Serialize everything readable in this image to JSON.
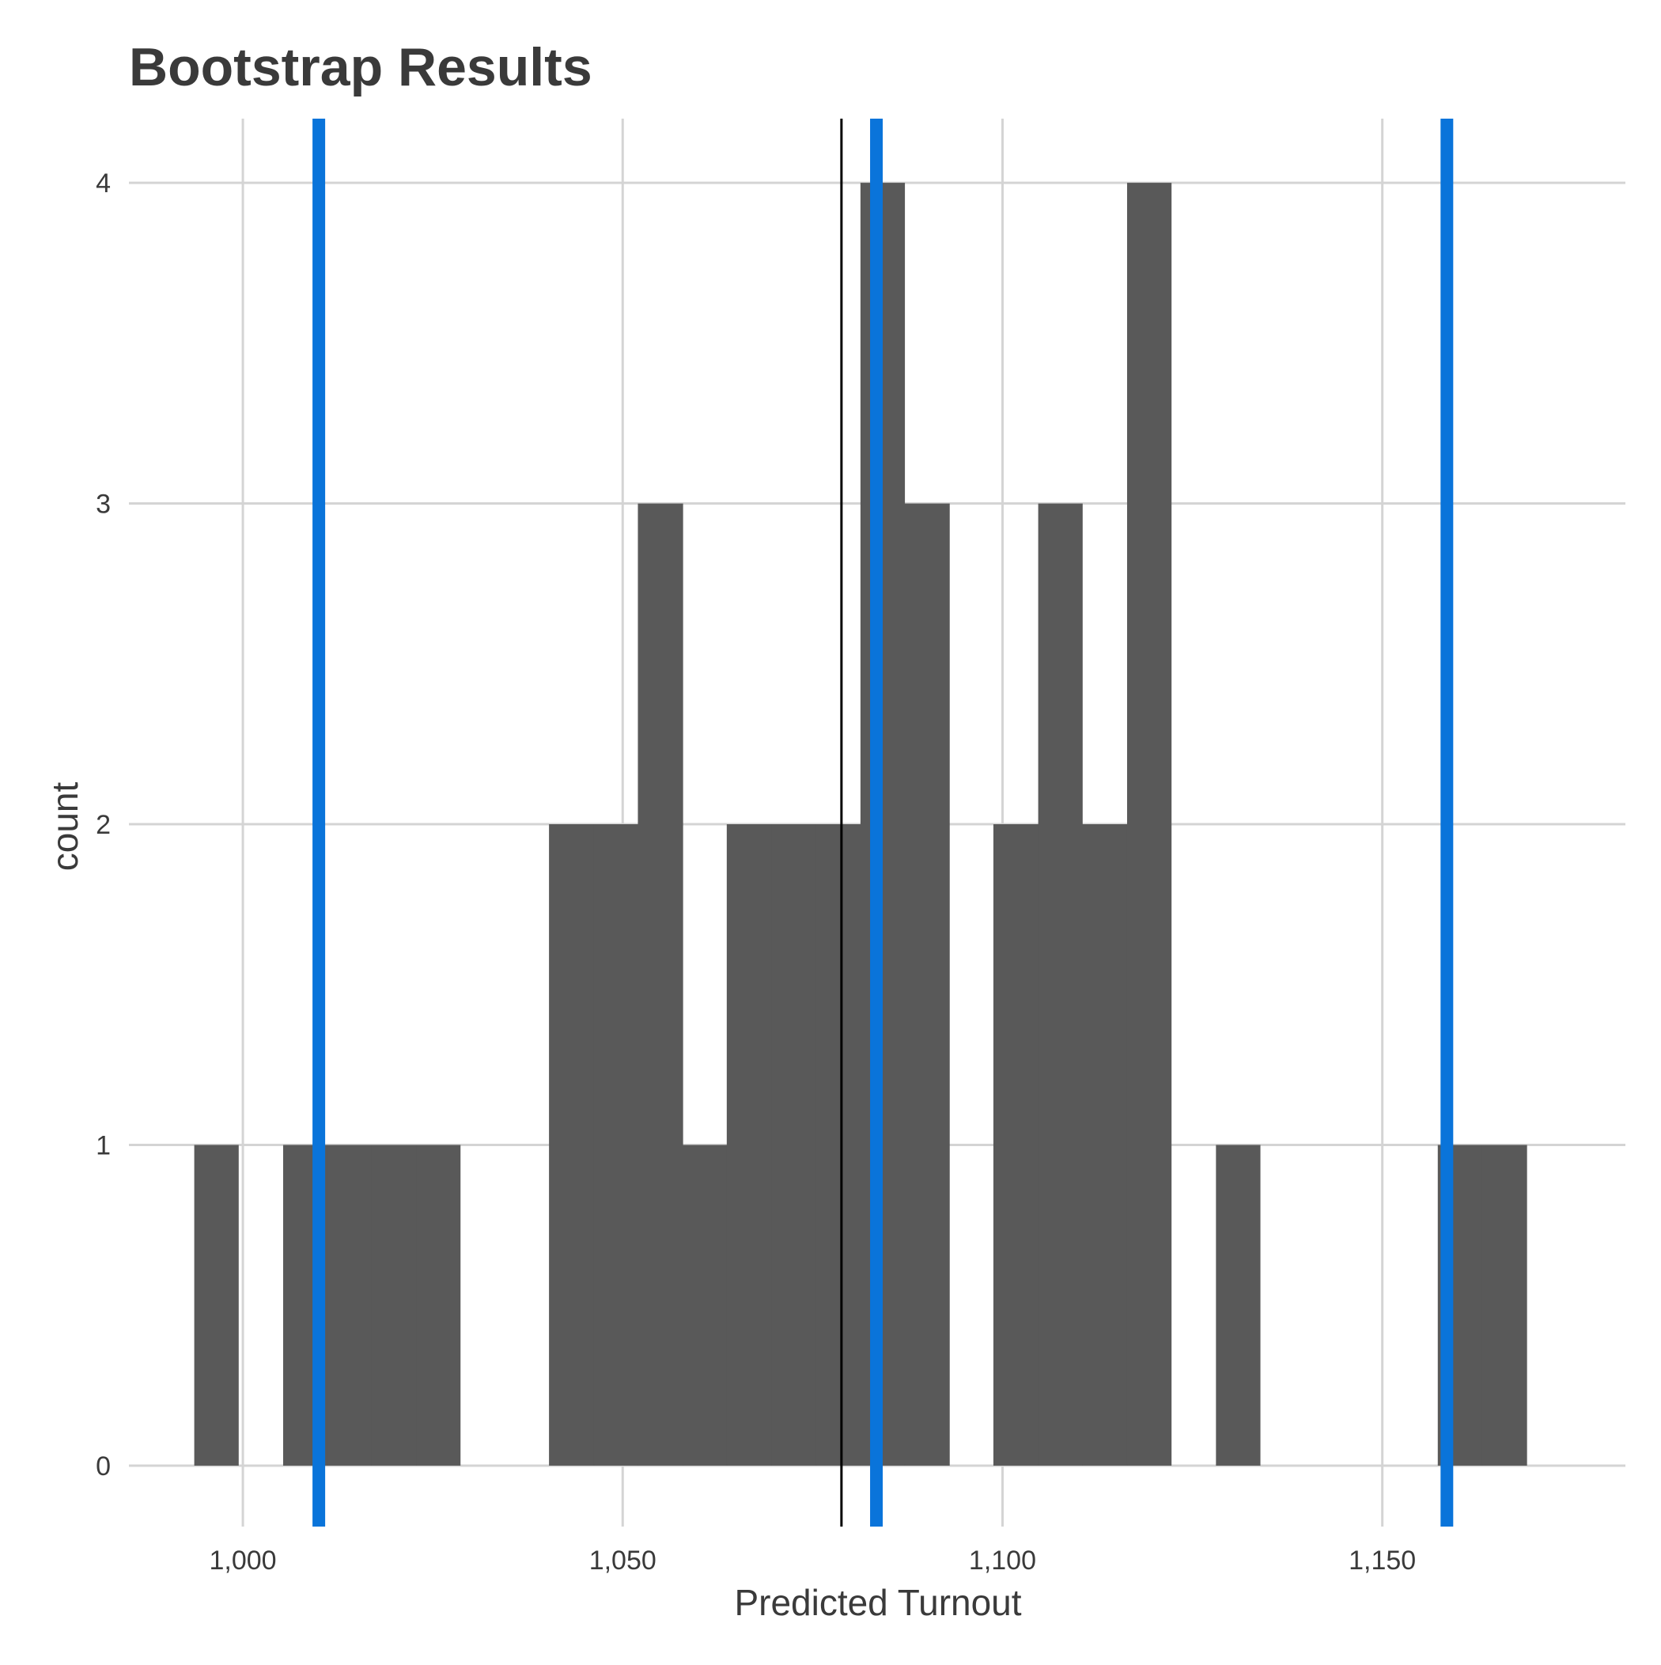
{
  "chart_data": {
    "type": "bar",
    "subtype": "histogram",
    "title": "Bootstrap Results",
    "xlabel": "Predicted Turnout",
    "ylabel": "count",
    "xlim": [
      985,
      1182
    ],
    "ylim": [
      -0.19,
      4.2
    ],
    "bin_width": 5.8,
    "bins": [
      {
        "x0": 993.6,
        "x1": 999.4,
        "count": 1
      },
      {
        "x0": 1005.3,
        "x1": 1011.1,
        "count": 1
      },
      {
        "x0": 1011.1,
        "x1": 1016.9,
        "count": 1
      },
      {
        "x0": 1016.9,
        "x1": 1022.8,
        "count": 1
      },
      {
        "x0": 1022.8,
        "x1": 1028.6,
        "count": 1
      },
      {
        "x0": 1040.3,
        "x1": 1046.2,
        "count": 2
      },
      {
        "x0": 1046.2,
        "x1": 1052.0,
        "count": 2
      },
      {
        "x0": 1052.0,
        "x1": 1057.9,
        "count": 3
      },
      {
        "x0": 1057.9,
        "x1": 1063.7,
        "count": 1
      },
      {
        "x0": 1063.7,
        "x1": 1069.6,
        "count": 2
      },
      {
        "x0": 1069.6,
        "x1": 1075.4,
        "count": 2
      },
      {
        "x0": 1075.4,
        "x1": 1081.3,
        "count": 2
      },
      {
        "x0": 1081.3,
        "x1": 1087.1,
        "count": 4
      },
      {
        "x0": 1087.1,
        "x1": 1093.0,
        "count": 3
      },
      {
        "x0": 1098.8,
        "x1": 1104.7,
        "count": 2
      },
      {
        "x0": 1104.7,
        "x1": 1110.5,
        "count": 3
      },
      {
        "x0": 1110.5,
        "x1": 1116.4,
        "count": 2
      },
      {
        "x0": 1116.4,
        "x1": 1122.2,
        "count": 4
      },
      {
        "x0": 1128.1,
        "x1": 1133.9,
        "count": 1
      },
      {
        "x0": 1157.3,
        "x1": 1163.1,
        "count": 1
      },
      {
        "x0": 1163.1,
        "x1": 1169.0,
        "count": 1
      }
    ],
    "x_ticks": [
      {
        "value": 1000,
        "label": "1,000"
      },
      {
        "value": 1050,
        "label": "1,050"
      },
      {
        "value": 1100,
        "label": "1,100"
      },
      {
        "value": 1150,
        "label": "1,150"
      }
    ],
    "y_ticks": [
      {
        "value": 0,
        "label": "0"
      },
      {
        "value": 1,
        "label": "1"
      },
      {
        "value": 2,
        "label": "2"
      },
      {
        "value": 3,
        "label": "3"
      },
      {
        "value": 4,
        "label": "4"
      }
    ],
    "reference_lines": [
      {
        "x": 1078.8,
        "color": "#000000",
        "kind": "thin"
      },
      {
        "x": 1010.0,
        "color": "#0a74da",
        "kind": "thick"
      },
      {
        "x": 1083.4,
        "color": "#0a74da",
        "kind": "thick"
      },
      {
        "x": 1158.5,
        "color": "#0a74da",
        "kind": "thick"
      }
    ],
    "bar_color": "#595959",
    "grid": true,
    "legend": "none"
  }
}
